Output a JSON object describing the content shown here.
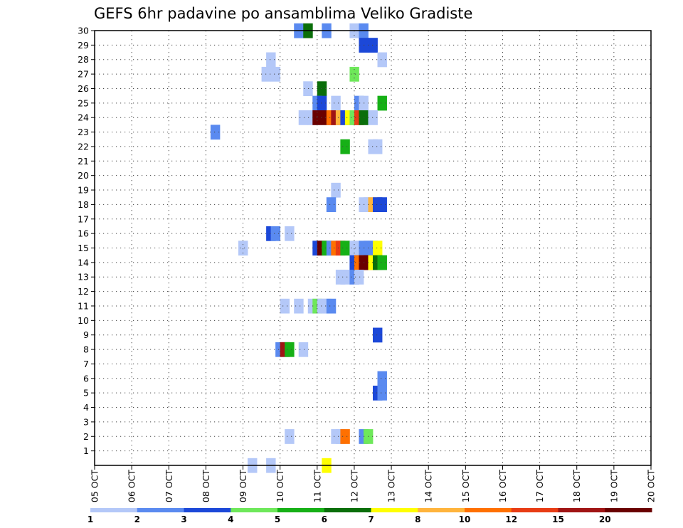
{
  "chart_data": {
    "type": "heatmap",
    "title": "GEFS 6hr padavine po ansamblima Veliko Gradiste",
    "xlabel": "",
    "ylabel": "",
    "x_tick_labels": [
      "05 OCT",
      "06 OCT",
      "07 OCT",
      "08 OCT",
      "09 OCT",
      "10 OCT",
      "11 OCT",
      "12 OCT",
      "13 OCT",
      "14 OCT",
      "15 OCT",
      "16 OCT",
      "17 OCT",
      "18 OCT",
      "19 OCT",
      "20 OCT"
    ],
    "y_tick_labels": [
      "1",
      "2",
      "3",
      "4",
      "5",
      "6",
      "7",
      "8",
      "9",
      "10",
      "11",
      "12",
      "13",
      "14",
      "15",
      "16",
      "17",
      "18",
      "19",
      "20",
      "21",
      "22",
      "23",
      "24",
      "25",
      "26",
      "27",
      "28",
      "29",
      "30"
    ],
    "x_range_steps": [
      0,
      60
    ],
    "y_range": [
      0,
      30
    ],
    "grid": true,
    "colorbar": {
      "labels": [
        "1",
        "2",
        "3",
        "4",
        "5",
        "6",
        "7",
        "8",
        "10",
        "12",
        "15",
        "20"
      ],
      "colors": [
        "#b4c8f8",
        "#5a8af0",
        "#1c48d8",
        "#6ee85a",
        "#16b016",
        "#0a6e0a",
        "#ffff00",
        "#ffb43c",
        "#ff7000",
        "#e83c14",
        "#a01414",
        "#6a0000"
      ]
    },
    "cells": [
      {
        "step": 21.5,
        "member": 30,
        "level": 2
      },
      {
        "step": 22.5,
        "member": 30,
        "level": 6
      },
      {
        "step": 24.5,
        "member": 30,
        "level": 2
      },
      {
        "step": 27.5,
        "member": 30,
        "level": 1
      },
      {
        "step": 28.5,
        "member": 30,
        "level": 2
      },
      {
        "step": 28.5,
        "member": 29,
        "level": 3
      },
      {
        "step": 29.5,
        "member": 29,
        "level": 3
      },
      {
        "step": 30.5,
        "member": 28,
        "level": 1
      },
      {
        "step": 18.5,
        "member": 28,
        "level": 1
      },
      {
        "step": 18.0,
        "member": 27,
        "level": 1
      },
      {
        "step": 19.0,
        "member": 27,
        "level": 1
      },
      {
        "step": 27.5,
        "member": 27,
        "level": 4
      },
      {
        "step": 22.5,
        "member": 26,
        "level": 1
      },
      {
        "step": 24.0,
        "member": 26,
        "level": 6
      },
      {
        "step": 23.5,
        "member": 25,
        "level": 2
      },
      {
        "step": 24.0,
        "member": 25,
        "level": 3
      },
      {
        "step": 25.5,
        "member": 25,
        "level": 1
      },
      {
        "step": 28.0,
        "member": 25,
        "level": 2
      },
      {
        "step": 28.5,
        "member": 25,
        "level": 1
      },
      {
        "step": 30.5,
        "member": 25,
        "level": 5
      },
      {
        "step": 22.0,
        "member": 24,
        "level": 1
      },
      {
        "step": 23.0,
        "member": 24,
        "level": 1
      },
      {
        "step": 23.5,
        "member": 24,
        "level": 12
      },
      {
        "step": 24.5,
        "member": 24,
        "level": 12
      },
      {
        "step": 25.0,
        "member": 24,
        "level": 9
      },
      {
        "step": 25.5,
        "member": 24,
        "level": 11
      },
      {
        "step": 26.0,
        "member": 24,
        "level": 8
      },
      {
        "step": 26.5,
        "member": 24,
        "level": 3
      },
      {
        "step": 27.0,
        "member": 24,
        "level": 7
      },
      {
        "step": 27.5,
        "member": 24,
        "level": 4
      },
      {
        "step": 28.0,
        "member": 24,
        "level": 10
      },
      {
        "step": 28.5,
        "member": 24,
        "level": 6
      },
      {
        "step": 29.5,
        "member": 24,
        "level": 1
      },
      {
        "step": 12.5,
        "member": 23,
        "level": 2
      },
      {
        "step": 26.5,
        "member": 22,
        "level": 5
      },
      {
        "step": 29.5,
        "member": 22,
        "level": 1
      },
      {
        "step": 30.0,
        "member": 22,
        "level": 1
      },
      {
        "step": 25.5,
        "member": 19,
        "level": 1
      },
      {
        "step": 25.0,
        "member": 18,
        "level": 2
      },
      {
        "step": 28.5,
        "member": 18,
        "level": 1
      },
      {
        "step": 29.0,
        "member": 18,
        "level": 1
      },
      {
        "step": 29.5,
        "member": 18,
        "level": 8
      },
      {
        "step": 30.0,
        "member": 18,
        "level": 3
      },
      {
        "step": 30.5,
        "member": 18,
        "level": 3
      },
      {
        "step": 18.5,
        "member": 16,
        "level": 3
      },
      {
        "step": 19.0,
        "member": 16,
        "level": 2
      },
      {
        "step": 20.5,
        "member": 16,
        "level": 1
      },
      {
        "step": 15.5,
        "member": 15,
        "level": 1
      },
      {
        "step": 23.5,
        "member": 15,
        "level": 3
      },
      {
        "step": 24.0,
        "member": 15,
        "level": 12
      },
      {
        "step": 24.5,
        "member": 15,
        "level": 5
      },
      {
        "step": 25.0,
        "member": 15,
        "level": 2
      },
      {
        "step": 25.5,
        "member": 15,
        "level": 9
      },
      {
        "step": 26.0,
        "member": 15,
        "level": 10
      },
      {
        "step": 26.5,
        "member": 15,
        "level": 5
      },
      {
        "step": 27.5,
        "member": 15,
        "level": 1
      },
      {
        "step": 28.5,
        "member": 15,
        "level": 2
      },
      {
        "step": 29.0,
        "member": 15,
        "level": 2
      },
      {
        "step": 29.5,
        "member": 15,
        "level": 2
      },
      {
        "step": 30.0,
        "member": 15,
        "level": 7
      },
      {
        "step": 27.5,
        "member": 14,
        "level": 3
      },
      {
        "step": 28.0,
        "member": 14,
        "level": 9
      },
      {
        "step": 28.5,
        "member": 14,
        "level": 12
      },
      {
        "step": 29.0,
        "member": 14,
        "level": 12
      },
      {
        "step": 29.5,
        "member": 14,
        "level": 7
      },
      {
        "step": 30.0,
        "member": 14,
        "level": 6
      },
      {
        "step": 30.5,
        "member": 14,
        "level": 5
      },
      {
        "step": 26.0,
        "member": 13,
        "level": 1
      },
      {
        "step": 26.5,
        "member": 13,
        "level": 1
      },
      {
        "step": 27.5,
        "member": 13,
        "level": 2
      },
      {
        "step": 28.0,
        "member": 13,
        "level": 1
      },
      {
        "step": 20.0,
        "member": 11,
        "level": 1
      },
      {
        "step": 21.5,
        "member": 11,
        "level": 1
      },
      {
        "step": 23.0,
        "member": 11,
        "level": 1
      },
      {
        "step": 23.5,
        "member": 11,
        "level": 4
      },
      {
        "step": 24.0,
        "member": 11,
        "level": 1
      },
      {
        "step": 24.5,
        "member": 11,
        "level": 1
      },
      {
        "step": 25.0,
        "member": 11,
        "level": 2
      },
      {
        "step": 30.0,
        "member": 9,
        "level": 3
      },
      {
        "step": 19.5,
        "member": 8,
        "level": 2
      },
      {
        "step": 20.0,
        "member": 8,
        "level": 11
      },
      {
        "step": 20.5,
        "member": 8,
        "level": 5
      },
      {
        "step": 22.0,
        "member": 8,
        "level": 1
      },
      {
        "step": 30.5,
        "member": 6,
        "level": 2
      },
      {
        "step": 30.0,
        "member": 5,
        "level": 3
      },
      {
        "step": 30.5,
        "member": 5,
        "level": 2
      },
      {
        "step": 20.5,
        "member": 2,
        "level": 1
      },
      {
        "step": 25.5,
        "member": 2,
        "level": 1
      },
      {
        "step": 26.0,
        "member": 2,
        "level": 1
      },
      {
        "step": 26.5,
        "member": 2,
        "level": 9
      },
      {
        "step": 28.5,
        "member": 2,
        "level": 2
      },
      {
        "step": 29.0,
        "member": 2,
        "level": 4
      },
      {
        "step": 16.5,
        "member": 0,
        "level": 1
      },
      {
        "step": 18.5,
        "member": 0,
        "level": 1
      },
      {
        "step": 24.5,
        "member": 0,
        "level": 7
      }
    ]
  }
}
